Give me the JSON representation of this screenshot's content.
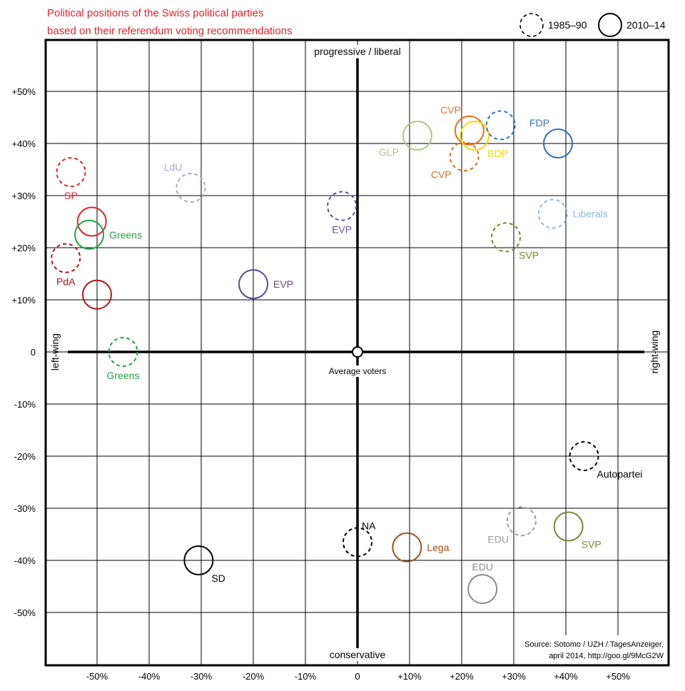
{
  "chart_data": {
    "type": "scatter",
    "title_lines": [
      "Political positions of the Swiss political parties",
      "based on their referendum voting recommendations"
    ],
    "title_color": "#e8202a",
    "legend": [
      {
        "label": "1985–90",
        "style": "dashed"
      },
      {
        "label": "2010–14",
        "style": "solid"
      }
    ],
    "axis_labels": {
      "top": "progressive / liberal",
      "bottom": "conservative",
      "left": "left-wing",
      "right": "right-wing",
      "center": "Average voters"
    },
    "x_ticks": [
      "-50%",
      "-40%",
      "-30%",
      "-20%",
      "-10%",
      "0",
      "+10%",
      "+20%",
      "+30%",
      "+40%",
      "+50%"
    ],
    "x_tick_values": [
      -50,
      -40,
      -30,
      -20,
      -10,
      0,
      10,
      20,
      30,
      40,
      50
    ],
    "y_ticks": [
      "+50%",
      "+40%",
      "+30%",
      "+20%",
      "+10%",
      "0",
      "-10%",
      "-20%",
      "-30%",
      "-40%",
      "-50%"
    ],
    "y_tick_values": [
      50,
      40,
      30,
      20,
      10,
      0,
      -10,
      -20,
      -30,
      -40,
      -50
    ],
    "xlim": [
      -60,
      60
    ],
    "ylim": [
      -60,
      60
    ],
    "grid": true,
    "source_lines": [
      "Source: Sotomo / UZH / TagesAnzeiger,",
      "april 2014, http://goo.gl/9McG2W"
    ],
    "points": [
      {
        "label": "SP",
        "period": "1985–90",
        "x": -55,
        "y": 34.5,
        "color": "#e8202a",
        "label_pos": "below"
      },
      {
        "label": "SP",
        "period": "2010–14",
        "x": -51,
        "y": 25,
        "color": "#e8202a",
        "label_pos": "none"
      },
      {
        "label": "Greens",
        "period": "2010–14",
        "x": -51.5,
        "y": 22.5,
        "color": "#1fa34a",
        "label_pos": "right"
      },
      {
        "label": "PdA",
        "period": "1985–90",
        "x": -56,
        "y": 18,
        "color": "#b5121b",
        "label_pos": "below"
      },
      {
        "label": "PdA",
        "period": "2010–14",
        "x": -50,
        "y": 11,
        "color": "#b5121b",
        "label_pos": "none"
      },
      {
        "label": "Greens",
        "period": "1985–90",
        "x": -45,
        "y": 0,
        "color": "#1fa34a",
        "label_pos": "below"
      },
      {
        "label": "LdU",
        "period": "1985–90",
        "x": -32,
        "y": 31.5,
        "color": "#b8a1cc",
        "label_pos": "above-left"
      },
      {
        "label": "EVP",
        "period": "2010–14",
        "x": -20,
        "y": 13,
        "color": "#5b4a8a",
        "label_pos": "right"
      },
      {
        "label": "EVP",
        "period": "1985–90",
        "x": -3,
        "y": 28,
        "color": "#6a4f9c",
        "label_pos": "below"
      },
      {
        "label": "GLP",
        "period": "2010–14",
        "x": 11.5,
        "y": 41.5,
        "color": "#a9c88a",
        "label_pos": "left"
      },
      {
        "label": "CVP",
        "period": "2010–14",
        "x": 21.5,
        "y": 42.5,
        "color": "#e3701f",
        "label_pos": "above-left"
      },
      {
        "label": "CVP",
        "period": "1985–90",
        "x": 20.5,
        "y": 37.5,
        "color": "#e3701f",
        "label_pos": "below-left"
      },
      {
        "label": "BDP",
        "period": "2010–14",
        "x": 22.5,
        "y": 41.5,
        "color": "#f5d800",
        "label_pos": "below-right"
      },
      {
        "label": "FDP",
        "period": "1985–90",
        "x": 27.5,
        "y": 43.5,
        "color": "#2e72bf",
        "label_pos": "none"
      },
      {
        "label": "FDP",
        "period": "2010–14",
        "x": 38.5,
        "y": 40,
        "color": "#2e72bf",
        "label_pos": "above-left"
      },
      {
        "label": "Liberals",
        "period": "1985–90",
        "x": 37.5,
        "y": 26.5,
        "color": "#8fb8e0",
        "label_pos": "right"
      },
      {
        "label": "SVP",
        "period": "1985–90",
        "x": 28.5,
        "y": 22,
        "color": "#6f8a32",
        "label_pos": "below-right"
      },
      {
        "label": "Autopartei",
        "period": "1985–90",
        "x": 43.5,
        "y": -20,
        "color": "#000000",
        "label_pos": "below-right"
      },
      {
        "label": "EDU",
        "period": "1985–90",
        "x": 31.5,
        "y": -32.5,
        "color": "#9a9a9a",
        "label_pos": "below-left"
      },
      {
        "label": "SVP",
        "period": "2010–14",
        "x": 40.5,
        "y": -33.5,
        "color": "#6f8a32",
        "label_pos": "below-right"
      },
      {
        "label": "NA",
        "period": "1985–90",
        "x": 0,
        "y": -36.5,
        "color": "#000000",
        "label_pos": "above-right"
      },
      {
        "label": "Lega",
        "period": "2010–14",
        "x": 9.5,
        "y": -37.5,
        "color": "#a0521d",
        "label_pos": "right"
      },
      {
        "label": "EDU",
        "period": "2010–14",
        "x": 24,
        "y": -45.5,
        "color": "#8a8a8a",
        "label_pos": "above"
      },
      {
        "label": "SD",
        "period": "2010–14",
        "x": -30.5,
        "y": -40,
        "color": "#000000",
        "label_pos": "below-right"
      }
    ]
  }
}
